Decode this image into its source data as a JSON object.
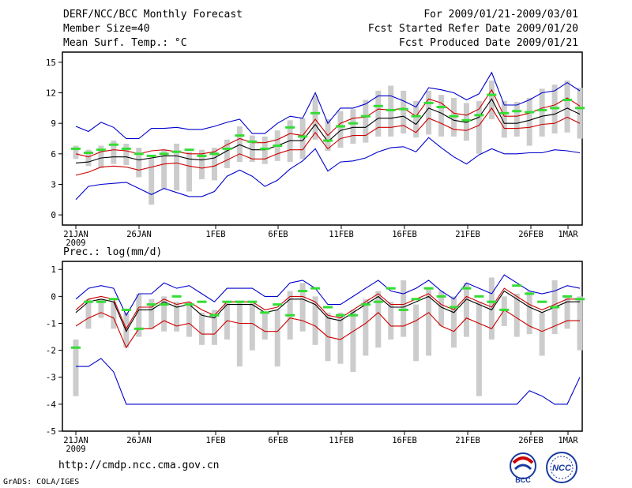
{
  "header": {
    "title": "DERF/NCC/BCC Monthly Forecast",
    "member_size": "Member Size=40",
    "var_label": "Mean Surf. Temp.: °C",
    "period": "For 2009/01/21-2009/03/01",
    "started": "Fcst Started Refer Date 2009/01/20",
    "produced": "Fcst Produced Date 2009/01/21"
  },
  "footer": {
    "url": "http://cmdp.ncc.cma.gov.cn",
    "grads": "GrADS: COLA/IGES",
    "logo_bcc": "BCC",
    "logo_ncc": "NCC"
  },
  "colors": {
    "max": "#0000cc",
    "mean": "#000000",
    "red": "#cc0000",
    "box": "#cccccc",
    "marker": "#33dd33"
  },
  "chart_data": [
    {
      "type": "line",
      "title": "Mean Surf. Temp.: °C",
      "x_tick_labels": [
        "21JAN",
        "26JAN",
        "1FEB",
        "6FEB",
        "11FEB",
        "16FEB",
        "21FEB",
        "26FEB",
        "1MAR"
      ],
      "x_year_label": "2009",
      "ylim": [
        -1,
        16
      ],
      "y_ticks": [
        0,
        3,
        6,
        9,
        12,
        15
      ],
      "series": [
        {
          "name": "max",
          "color": "blue",
          "values": [
            8.7,
            8.2,
            9.1,
            8.6,
            7.5,
            7.5,
            8.5,
            8.5,
            8.6,
            8.4,
            8.4,
            8.7,
            9.1,
            9.4,
            8.0,
            8.0,
            9.0,
            9.7,
            9.5,
            12.0,
            9.0,
            10.5,
            10.5,
            10.9,
            11.7,
            11.7,
            11.2,
            10.6,
            12.5,
            12.3,
            12.0,
            11.3,
            11.9,
            14.0,
            10.8,
            10.8,
            11.3,
            12.0,
            12.2,
            13.0,
            12.2
          ]
        },
        {
          "name": "upper",
          "color": "red",
          "values": [
            6.0,
            5.7,
            6.2,
            6.4,
            6.3,
            6.0,
            6.3,
            6.4,
            6.2,
            6.0,
            6.0,
            6.2,
            6.9,
            7.5,
            7.1,
            7.1,
            7.4,
            8.0,
            7.8,
            9.4,
            7.8,
            9.0,
            9.5,
            9.6,
            10.4,
            10.3,
            10.5,
            9.7,
            11.4,
            11.0,
            10.0,
            9.8,
            10.4,
            12.3,
            9.7,
            9.7,
            10.0,
            10.5,
            10.8,
            11.5,
            10.7
          ]
        },
        {
          "name": "mean",
          "color": "black",
          "values": [
            5.1,
            5.2,
            5.6,
            5.7,
            5.7,
            5.4,
            5.6,
            5.8,
            5.8,
            5.5,
            5.4,
            5.6,
            6.3,
            6.9,
            6.4,
            6.4,
            6.8,
            7.3,
            7.3,
            8.9,
            7.2,
            8.3,
            8.6,
            8.6,
            9.5,
            9.5,
            9.7,
            8.9,
            10.5,
            10.0,
            9.3,
            9.1,
            9.6,
            11.4,
            9.0,
            9.0,
            9.3,
            9.7,
            9.9,
            10.5,
            9.9
          ]
        },
        {
          "name": "lower",
          "color": "red",
          "values": [
            3.9,
            4.2,
            4.7,
            4.8,
            4.7,
            4.4,
            4.7,
            5.0,
            5.1,
            4.8,
            4.6,
            4.8,
            5.4,
            6.0,
            5.5,
            5.5,
            6.0,
            6.4,
            6.4,
            8.1,
            6.5,
            7.5,
            7.8,
            7.8,
            8.6,
            8.6,
            8.8,
            8.1,
            9.5,
            9.0,
            8.4,
            8.3,
            8.8,
            10.5,
            8.5,
            8.5,
            8.6,
            8.9,
            9.0,
            9.6,
            9.0
          ]
        },
        {
          "name": "min",
          "color": "blue",
          "values": [
            1.5,
            2.8,
            3.0,
            3.1,
            3.2,
            2.6,
            2.0,
            2.6,
            2.2,
            1.8,
            1.8,
            2.3,
            3.8,
            4.4,
            3.8,
            2.8,
            3.4,
            4.5,
            5.3,
            6.5,
            4.3,
            5.2,
            5.3,
            5.6,
            6.2,
            6.6,
            6.7,
            6.2,
            7.6,
            6.6,
            5.7,
            5.0,
            5.9,
            6.5,
            6.0,
            6.0,
            6.1,
            6.1,
            6.4,
            6.3,
            6.1
          ]
        }
      ],
      "boxes": [
        [
          5.5,
          6.8
        ],
        [
          4.8,
          6.4
        ],
        [
          4.6,
          6.8
        ],
        [
          5.0,
          7.3
        ],
        [
          4.9,
          7.0
        ],
        [
          3.7,
          6.6
        ],
        [
          1.0,
          5.6
        ],
        [
          2.6,
          6.4
        ],
        [
          2.4,
          7.0
        ],
        [
          2.3,
          6.2
        ],
        [
          3.5,
          6.4
        ],
        [
          3.4,
          6.6
        ],
        [
          4.6,
          7.4
        ],
        [
          5.2,
          8.7
        ],
        [
          5.2,
          7.8
        ],
        [
          5.0,
          7.7
        ],
        [
          5.3,
          8.3
        ],
        [
          5.2,
          9.3
        ],
        [
          5.5,
          9.5
        ],
        [
          7.4,
          11.7
        ],
        [
          6.3,
          9.4
        ],
        [
          6.6,
          10.2
        ],
        [
          7.0,
          10.4
        ],
        [
          7.1,
          11.3
        ],
        [
          7.7,
          12.2
        ],
        [
          7.7,
          12.7
        ],
        [
          8.0,
          12.2
        ],
        [
          7.6,
          11.2
        ],
        [
          7.9,
          12.2
        ],
        [
          7.7,
          11.8
        ],
        [
          7.7,
          11.5
        ],
        [
          7.3,
          11.0
        ],
        [
          6.0,
          11.2
        ],
        [
          9.4,
          13.2
        ],
        [
          7.6,
          11.2
        ],
        [
          7.7,
          11.1
        ],
        [
          6.8,
          11.5
        ],
        [
          7.7,
          12.4
        ],
        [
          8.0,
          12.8
        ],
        [
          8.1,
          13.2
        ],
        [
          7.5,
          12.5
        ]
      ],
      "markers": [
        6.5,
        6.1,
        6.4,
        6.9,
        6.5,
        6.0,
        5.8,
        6.0,
        6.2,
        6.4,
        5.8,
        6.0,
        6.5,
        7.8,
        7.2,
        6.5,
        6.8,
        8.6,
        7.7,
        10.0,
        7.3,
        8.7,
        9.0,
        9.7,
        10.7,
        10.3,
        10.4,
        9.7,
        11.0,
        10.6,
        9.7,
        9.3,
        9.8,
        11.8,
        10.0,
        10.2,
        10.1,
        10.3,
        10.5,
        11.3,
        10.5
      ]
    },
    {
      "type": "line",
      "title": "Prec.: log(mm/d)",
      "x_tick_labels": [
        "21JAN",
        "26JAN",
        "1FEB",
        "6FEB",
        "11FEB",
        "16FEB",
        "21FEB",
        "26FEB",
        "1MAR"
      ],
      "x_year_label": "2009",
      "ylim": [
        -5,
        1.3
      ],
      "y_ticks": [
        -5,
        -4,
        -3,
        -2,
        -1,
        0,
        1
      ],
      "series": [
        {
          "name": "max",
          "color": "blue",
          "values": [
            -0.1,
            0.3,
            0.4,
            0.3,
            -0.7,
            0.1,
            0.1,
            0.5,
            0.3,
            0.4,
            0.1,
            -0.2,
            0.3,
            0.3,
            0.3,
            0.0,
            0.0,
            0.5,
            0.6,
            0.3,
            -0.3,
            -0.3,
            0.0,
            0.3,
            0.6,
            0.2,
            0.1,
            0.3,
            0.6,
            0.2,
            -0.1,
            0.5,
            0.3,
            0.1,
            0.8,
            0.5,
            0.2,
            0.1,
            0.2,
            0.4,
            0.3
          ]
        },
        {
          "name": "upper",
          "color": "red",
          "values": [
            -0.5,
            -0.1,
            0.0,
            -0.1,
            -1.2,
            -0.4,
            -0.4,
            -0.1,
            -0.3,
            -0.2,
            -0.5,
            -0.7,
            -0.2,
            -0.2,
            -0.2,
            -0.5,
            -0.4,
            0.0,
            0.0,
            -0.2,
            -0.7,
            -0.8,
            -0.5,
            -0.2,
            0.1,
            -0.3,
            -0.3,
            -0.1,
            0.1,
            -0.3,
            -0.5,
            0.0,
            -0.2,
            -0.4,
            0.3,
            0.0,
            -0.3,
            -0.5,
            -0.3,
            -0.1,
            -0.1
          ]
        },
        {
          "name": "mean",
          "color": "black",
          "values": [
            -0.6,
            -0.2,
            -0.1,
            -0.2,
            -1.3,
            -0.5,
            -0.5,
            -0.2,
            -0.4,
            -0.3,
            -0.7,
            -0.8,
            -0.3,
            -0.3,
            -0.3,
            -0.6,
            -0.5,
            -0.1,
            -0.1,
            -0.3,
            -0.8,
            -0.9,
            -0.6,
            -0.3,
            0.0,
            -0.4,
            -0.4,
            -0.2,
            0.0,
            -0.4,
            -0.6,
            -0.1,
            -0.3,
            -0.5,
            0.2,
            -0.1,
            -0.4,
            -0.6,
            -0.4,
            -0.2,
            -0.2
          ]
        },
        {
          "name": "lower",
          "color": "red",
          "values": [
            -1.1,
            -0.8,
            -0.6,
            -0.8,
            -1.9,
            -1.2,
            -1.2,
            -0.9,
            -1.1,
            -1.0,
            -1.4,
            -1.4,
            -0.9,
            -1.0,
            -1.0,
            -1.3,
            -1.3,
            -0.8,
            -0.9,
            -1.1,
            -1.5,
            -1.6,
            -1.3,
            -1.0,
            -0.6,
            -1.1,
            -1.1,
            -0.9,
            -0.6,
            -1.1,
            -1.3,
            -0.8,
            -1.0,
            -1.2,
            -0.5,
            -0.8,
            -1.1,
            -1.3,
            -1.1,
            -0.9,
            -0.9
          ]
        },
        {
          "name": "min",
          "color": "blue",
          "values": [
            -2.6,
            -2.6,
            -2.3,
            -2.8,
            -4.0,
            -4.0,
            -4.0,
            -4.0,
            -4.0,
            -4.0,
            -4.0,
            -4.0,
            -4.0,
            -4.0,
            -4.0,
            -4.0,
            -4.0,
            -4.0,
            -4.0,
            -4.0,
            -4.0,
            -4.0,
            -4.0,
            -4.0,
            -4.0,
            -4.0,
            -4.0,
            -4.0,
            -4.0,
            -4.0,
            -4.0,
            -4.0,
            -4.0,
            -4.0,
            -4.0,
            -4.0,
            -3.5,
            -3.7,
            -4.0,
            -4.0,
            -3.0
          ]
        }
      ],
      "boxes": [
        [
          -3.7,
          -1.6
        ],
        [
          -1.2,
          -0.1
        ],
        [
          -0.8,
          -0.1
        ],
        [
          -1.2,
          -0.2
        ],
        [
          -1.9,
          -0.6
        ],
        [
          -1.5,
          0.1
        ],
        [
          -1.2,
          -0.1
        ],
        [
          -1.3,
          0.0
        ],
        [
          -1.3,
          -0.2
        ],
        [
          -1.5,
          -0.2
        ],
        [
          -1.8,
          -0.6
        ],
        [
          -1.8,
          -0.5
        ],
        [
          -1.6,
          -0.2
        ],
        [
          -2.6,
          -0.2
        ],
        [
          -2.0,
          -0.2
        ],
        [
          -1.6,
          -0.6
        ],
        [
          -2.6,
          -0.5
        ],
        [
          -1.6,
          0.2
        ],
        [
          -1.3,
          0.5
        ],
        [
          -1.8,
          0.0
        ],
        [
          -2.4,
          -0.6
        ],
        [
          -2.5,
          -0.6
        ],
        [
          -2.8,
          -0.5
        ],
        [
          -2.2,
          -0.1
        ],
        [
          -1.9,
          0.2
        ],
        [
          -1.6,
          -0.2
        ],
        [
          -1.5,
          0.6
        ],
        [
          -2.4,
          -0.3
        ],
        [
          -2.2,
          0.3
        ],
        [
          -1.1,
          0.2
        ],
        [
          -1.9,
          0.0
        ],
        [
          -1.5,
          0.5
        ],
        [
          -3.7,
          -0.2
        ],
        [
          -1.6,
          0.7
        ],
        [
          -1.1,
          0.0
        ],
        [
          -1.5,
          0.1
        ],
        [
          -1.4,
          0.2
        ],
        [
          -2.2,
          -0.6
        ],
        [
          -1.4,
          0.6
        ],
        [
          -1.2,
          0.0
        ],
        [
          -2.0,
          0.0
        ]
      ],
      "markers": [
        -1.9,
        -0.2,
        -0.2,
        -0.1,
        -0.5,
        -1.2,
        -0.3,
        -0.3,
        0.0,
        -0.3,
        -0.2,
        -0.7,
        -0.2,
        -0.2,
        -0.2,
        -0.6,
        -0.3,
        -0.7,
        0.2,
        0.3,
        -0.4,
        -0.7,
        -0.7,
        -0.3,
        -0.2,
        0.3,
        -0.5,
        -0.1,
        0.3,
        0.0,
        -0.4,
        0.3,
        0.0,
        -0.2,
        -0.5,
        0.4,
        0.1,
        -0.2,
        -0.4,
        0.0,
        -0.1
      ]
    }
  ]
}
